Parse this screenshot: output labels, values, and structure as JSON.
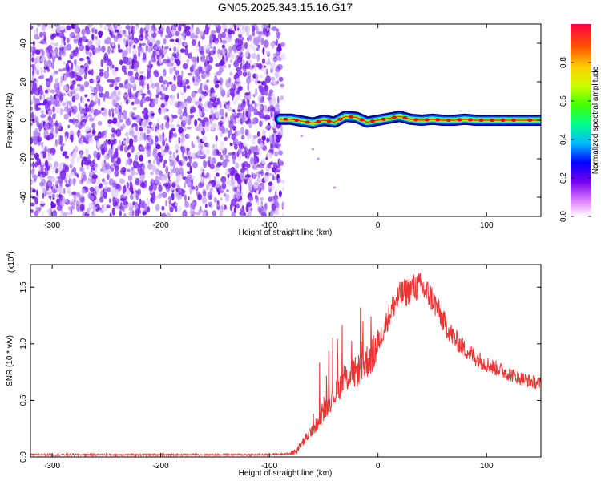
{
  "title": "GN05.2025.343.15.16.G17",
  "chart_data": [
    {
      "type": "heatmap",
      "name": "spectrogram",
      "xlabel": "Height of straight line (km)",
      "ylabel": "Frequency (Hz)",
      "xlim": [
        -320,
        150
      ],
      "ylim": [
        -50,
        50
      ],
      "x_ticks": [
        -300,
        -200,
        -100,
        0,
        100
      ],
      "y_ticks": [
        -40,
        -20,
        0,
        20,
        40
      ],
      "x_tick_labels": [
        "-300",
        "-200",
        "-100",
        "0",
        "100"
      ],
      "y_tick_labels": [
        "-40",
        "-20",
        "0",
        "20",
        "40"
      ],
      "noise_region_x": [
        -320,
        -90
      ],
      "signal_track": {
        "x": [
          -90,
          -80,
          -70,
          -60,
          -50,
          -40,
          -30,
          -20,
          -10,
          0,
          10,
          20,
          30,
          40,
          50,
          60,
          70,
          80,
          90,
          100,
          110,
          120,
          130,
          150
        ],
        "freq": [
          0.5,
          0.5,
          -0.5,
          -1.5,
          0,
          -1,
          2,
          1.5,
          -1,
          0,
          1,
          2,
          0.5,
          0,
          0.5,
          0,
          0,
          0.5,
          0,
          0,
          0,
          0,
          0,
          0
        ]
      },
      "colorbar": {
        "label": "Normalized spectral amplitude",
        "range": [
          0,
          1
        ],
        "ticks": [
          0.0,
          0.2,
          0.4,
          0.6,
          0.8
        ],
        "tick_labels": [
          "0.0",
          "0.2",
          "0.4",
          "0.6",
          "0.8"
        ]
      }
    },
    {
      "type": "line",
      "name": "snr",
      "xlabel": "Height of straight line (km)",
      "ylabel": "SNR (10 * v/v)",
      "y_multiplier": "(x10",
      "y_multiplier_exp": "4",
      "y_multiplier_close": ")",
      "xlim": [
        -320,
        150
      ],
      "ylim": [
        0,
        1.7
      ],
      "x_ticks": [
        -300,
        -200,
        -100,
        0,
        100
      ],
      "y_ticks": [
        0.0,
        0.5,
        1.0,
        1.5
      ],
      "x_tick_labels": [
        "-300",
        "-200",
        "-100",
        "0",
        "100"
      ],
      "y_tick_labels": [
        "0.0",
        "0.5",
        "1.0",
        "1.5"
      ],
      "color": "#ee3333",
      "series": [
        {
          "name": "SNR",
          "x": [
            -320,
            -280,
            -240,
            -200,
            -160,
            -120,
            -100,
            -80,
            -75,
            -70,
            -65,
            -60,
            -55,
            -50,
            -45,
            -40,
            -35,
            -30,
            -25,
            -20,
            -15,
            -10,
            -5,
            0,
            5,
            10,
            15,
            20,
            25,
            30,
            35,
            40,
            45,
            50,
            55,
            60,
            70,
            80,
            90,
            100,
            110,
            120,
            130,
            140,
            150
          ],
          "y": [
            0.02,
            0.02,
            0.02,
            0.02,
            0.02,
            0.02,
            0.02,
            0.03,
            0.06,
            0.12,
            0.18,
            0.25,
            0.3,
            0.4,
            0.48,
            0.55,
            0.62,
            0.7,
            0.72,
            0.75,
            0.8,
            0.85,
            0.9,
            1.0,
            1.12,
            1.25,
            1.35,
            1.42,
            1.45,
            1.48,
            1.5,
            1.5,
            1.45,
            1.4,
            1.3,
            1.2,
            1.05,
            0.95,
            0.88,
            0.82,
            0.78,
            0.74,
            0.7,
            0.67,
            0.65
          ]
        }
      ]
    }
  ]
}
